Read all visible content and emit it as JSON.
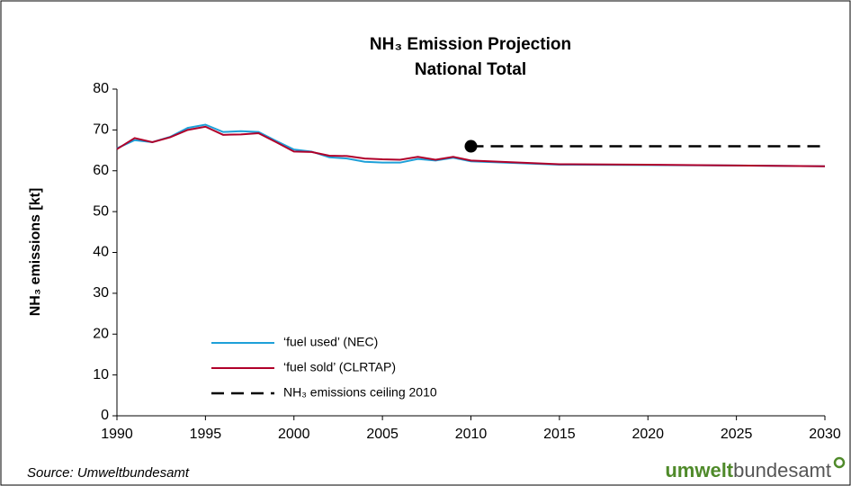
{
  "chart_data": {
    "type": "line",
    "title": [
      "NH₃ Emission Projection",
      "National Total"
    ],
    "y_label": "NH₃ emissions [kt]",
    "source": "Source: Umweltbundesamt",
    "logo": {
      "bold": "umwelt",
      "rest": "bundesamt"
    },
    "x": [
      1990,
      1991,
      1992,
      1993,
      1994,
      1995,
      1996,
      1997,
      1998,
      1999,
      2000,
      2001,
      2002,
      2003,
      2004,
      2005,
      2006,
      2007,
      2008,
      2009,
      2010,
      2015,
      2020,
      2025,
      2030
    ],
    "xlim": [
      1990,
      2030
    ],
    "xticks": [
      1990,
      1995,
      2000,
      2005,
      2010,
      2015,
      2020,
      2025,
      2030
    ],
    "ylim": [
      0,
      80
    ],
    "yticks": [
      0,
      10,
      20,
      30,
      40,
      50,
      60,
      70,
      80
    ],
    "grid": false,
    "legend": "lower-left",
    "series": [
      {
        "name": "‘fuel used’ (NEC)",
        "color": "#1ea0d8",
        "values": [
          65.5,
          67.5,
          67.0,
          68.3,
          70.5,
          71.3,
          69.5,
          69.7,
          69.5,
          67.3,
          65.2,
          64.7,
          63.3,
          63.0,
          62.2,
          62.0,
          62.0,
          62.9,
          62.5,
          63.2,
          62.3,
          61.5,
          61.4,
          61.3,
          61.1
        ]
      },
      {
        "name": "‘fuel sold’ (CLRTAP)",
        "color": "#b0002a",
        "values": [
          65.3,
          68.0,
          67.0,
          68.2,
          70.0,
          70.8,
          68.8,
          68.9,
          69.2,
          67.0,
          64.7,
          64.6,
          63.7,
          63.6,
          63.0,
          62.8,
          62.7,
          63.4,
          62.7,
          63.4,
          62.5,
          61.6,
          61.5,
          61.3,
          61.1
        ]
      },
      {
        "name": "NH₃ emissions ceiling 2010",
        "color": "#000000",
        "dashed": true,
        "start_marker": true,
        "values": [
          null,
          null,
          null,
          null,
          null,
          null,
          null,
          null,
          null,
          null,
          null,
          null,
          null,
          null,
          null,
          null,
          null,
          null,
          null,
          null,
          66,
          66,
          66,
          66,
          66
        ]
      }
    ]
  }
}
